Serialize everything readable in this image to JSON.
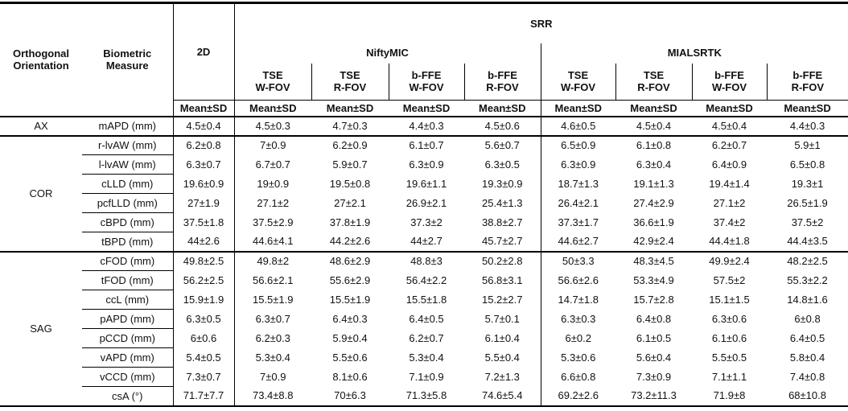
{
  "table": {
    "header": {
      "orientation_label": "Orthogonal Orientation",
      "measure_label": "Biometric Measure",
      "col_2d": "2D",
      "srr_label": "SRR",
      "method_groups": [
        {
          "name": "NiftyMIC"
        },
        {
          "name": "MIALSRTK"
        }
      ],
      "subcolumns": [
        {
          "line1": "TSE",
          "line2": "W-FOV"
        },
        {
          "line1": "TSE",
          "line2": "R-FOV"
        },
        {
          "line1": "b-FFE",
          "line2": "W-FOV"
        },
        {
          "line1": "b-FFE",
          "line2": "R-FOV"
        }
      ],
      "stat_label": "Mean±SD"
    },
    "groups": [
      {
        "orientation": "AX",
        "rows": [
          {
            "measure": "mAPD (mm)",
            "values": [
              "4.5±0.4",
              "4.5±0.3",
              "4.7±0.3",
              "4.4±0.3",
              "4.5±0.6",
              "4.6±0.5",
              "4.5±0.4",
              "4.5±0.4",
              "4.4±0.3"
            ]
          }
        ]
      },
      {
        "orientation": "COR",
        "rows": [
          {
            "measure": "r-lvAW (mm)",
            "values": [
              "6.2±0.8",
              "7±0.9",
              "6.2±0.9",
              "6.1±0.7",
              "5.6±0.7",
              "6.5±0.9",
              "6.1±0.8",
              "6.2±0.7",
              "5.9±1"
            ]
          },
          {
            "measure": "l-lvAW (mm)",
            "values": [
              "6.3±0.7",
              "6.7±0.7",
              "5.9±0.7",
              "6.3±0.9",
              "6.3±0.5",
              "6.3±0.9",
              "6.3±0.4",
              "6.4±0.9",
              "6.5±0.8"
            ]
          },
          {
            "measure": "cLLD (mm)",
            "values": [
              "19.6±0.9",
              "19±0.9",
              "19.5±0.8",
              "19.6±1.1",
              "19.3±0.9",
              "18.7±1.3",
              "19.1±1.3",
              "19.4±1.4",
              "19.3±1"
            ]
          },
          {
            "measure": "pcfLLD (mm)",
            "values": [
              "27±1.9",
              "27.1±2",
              "27±2.1",
              "26.9±2.1",
              "25.4±1.3",
              "26.4±2.1",
              "27.4±2.9",
              "27.1±2",
              "26.5±1.9"
            ]
          },
          {
            "measure": "cBPD (mm)",
            "values": [
              "37.5±1.8",
              "37.5±2.9",
              "37.8±1.9",
              "37.3±2",
              "38.8±2.7",
              "37.3±1.7",
              "36.6±1.9",
              "37.4±2",
              "37.5±2"
            ]
          },
          {
            "measure": "tBPD (mm)",
            "values": [
              "44±2.6",
              "44.6±4.1",
              "44.2±2.6",
              "44±2.7",
              "45.7±2.7",
              "44.6±2.7",
              "42.9±2.4",
              "44.4±1.8",
              "44.4±3.5"
            ]
          }
        ]
      },
      {
        "orientation": "SAG",
        "rows": [
          {
            "measure": "cFOD (mm)",
            "values": [
              "49.8±2.5",
              "49.8±2",
              "48.6±2.9",
              "48.8±3",
              "50.2±2.8",
              "50±3.3",
              "48.3±4.5",
              "49.9±2.4",
              "48.2±2.5"
            ]
          },
          {
            "measure": "tFOD (mm)",
            "values": [
              "56.2±2.5",
              "56.6±2.1",
              "55.6±2.9",
              "56.4±2.2",
              "56.8±3.1",
              "56.6±2.6",
              "53.3±4.9",
              "57.5±2",
              "55.3±2.2"
            ]
          },
          {
            "measure": "ccL (mm)",
            "values": [
              "15.9±1.9",
              "15.5±1.9",
              "15.5±1.9",
              "15.5±1.8",
              "15.2±2.7",
              "14.7±1.8",
              "15.7±2.8",
              "15.1±1.5",
              "14.8±1.6"
            ]
          },
          {
            "measure": "pAPD (mm)",
            "values": [
              "6.3±0.5",
              "6.3±0.7",
              "6.4±0.3",
              "6.4±0.5",
              "5.7±0.1",
              "6.3±0.3",
              "6.4±0.8",
              "6.3±0.6",
              "6±0.8"
            ]
          },
          {
            "measure": "pCCD (mm)",
            "values": [
              "6±0.6",
              "6.2±0.3",
              "5.9±0.4",
              "6.2±0.7",
              "6.1±0.4",
              "6±0.2",
              "6.1±0.5",
              "6.1±0.6",
              "6.4±0.5"
            ]
          },
          {
            "measure": "vAPD (mm)",
            "values": [
              "5.4±0.5",
              "5.3±0.4",
              "5.5±0.6",
              "5.3±0.4",
              "5.5±0.4",
              "5.3±0.6",
              "5.6±0.4",
              "5.5±0.5",
              "5.8±0.4"
            ]
          },
          {
            "measure": "vCCD (mm)",
            "values": [
              "7.3±0.7",
              "7±0.9",
              "8.1±0.6",
              "7.1±0.9",
              "7.2±1.3",
              "6.6±0.8",
              "7.3±0.9",
              "7.1±1.1",
              "7.4±0.8"
            ]
          },
          {
            "measure": "csA (°)",
            "values": [
              "71.7±7.7",
              "73.4±8.8",
              "70±6.3",
              "71.3±5.8",
              "74.6±5.4",
              "69.2±2.6",
              "73.2±11.3",
              "71.9±8",
              "68±10.8"
            ]
          }
        ]
      }
    ]
  }
}
